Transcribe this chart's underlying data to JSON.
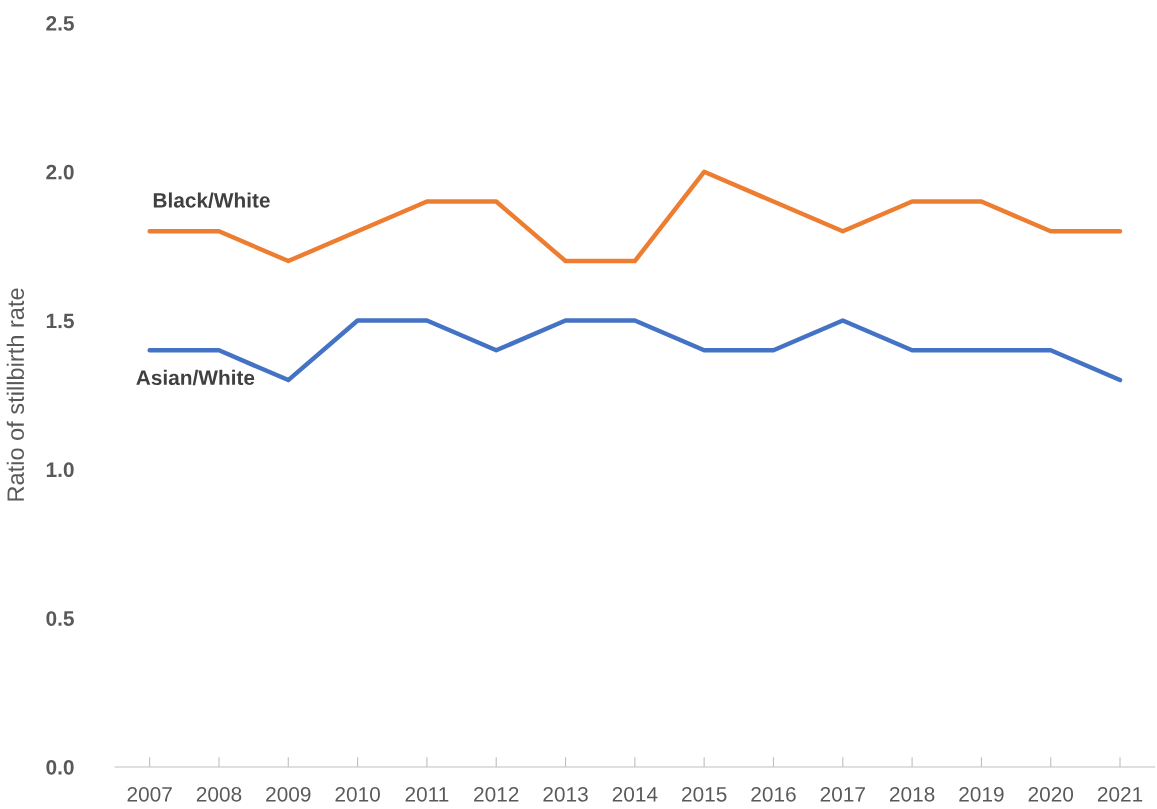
{
  "chart_data": {
    "type": "line",
    "ylabel": "Ratio of stillbirth rate",
    "categories": [
      "2007",
      "2008",
      "2009",
      "2010",
      "2011",
      "2012",
      "2013",
      "2014",
      "2015",
      "2016",
      "2017",
      "2018",
      "2019",
      "2020",
      "2021"
    ],
    "series": [
      {
        "name": "Black/White",
        "color": "#ed7d31",
        "values": [
          1.8,
          1.8,
          1.7,
          1.8,
          1.9,
          1.9,
          1.7,
          1.7,
          2.0,
          1.9,
          1.8,
          1.9,
          1.9,
          1.8,
          1.8
        ]
      },
      {
        "name": "Asian/White",
        "color": "#4472c4",
        "values": [
          1.4,
          1.4,
          1.3,
          1.5,
          1.5,
          1.4,
          1.5,
          1.5,
          1.4,
          1.4,
          1.5,
          1.4,
          1.4,
          1.4,
          1.3
        ]
      }
    ],
    "ylim": [
      0,
      2.5
    ],
    "yticks": [
      {
        "value": 0,
        "label": "0.0"
      },
      {
        "value": 0.5,
        "label": "0.5"
      },
      {
        "value": 1,
        "label": "1.0"
      },
      {
        "value": 1.5,
        "label": "1.5"
      },
      {
        "value": 2,
        "label": "2.0"
      },
      {
        "value": 2.5,
        "label": "2.5"
      }
    ],
    "grid": false,
    "legend": false,
    "marker": "none",
    "line_style": "solid"
  }
}
